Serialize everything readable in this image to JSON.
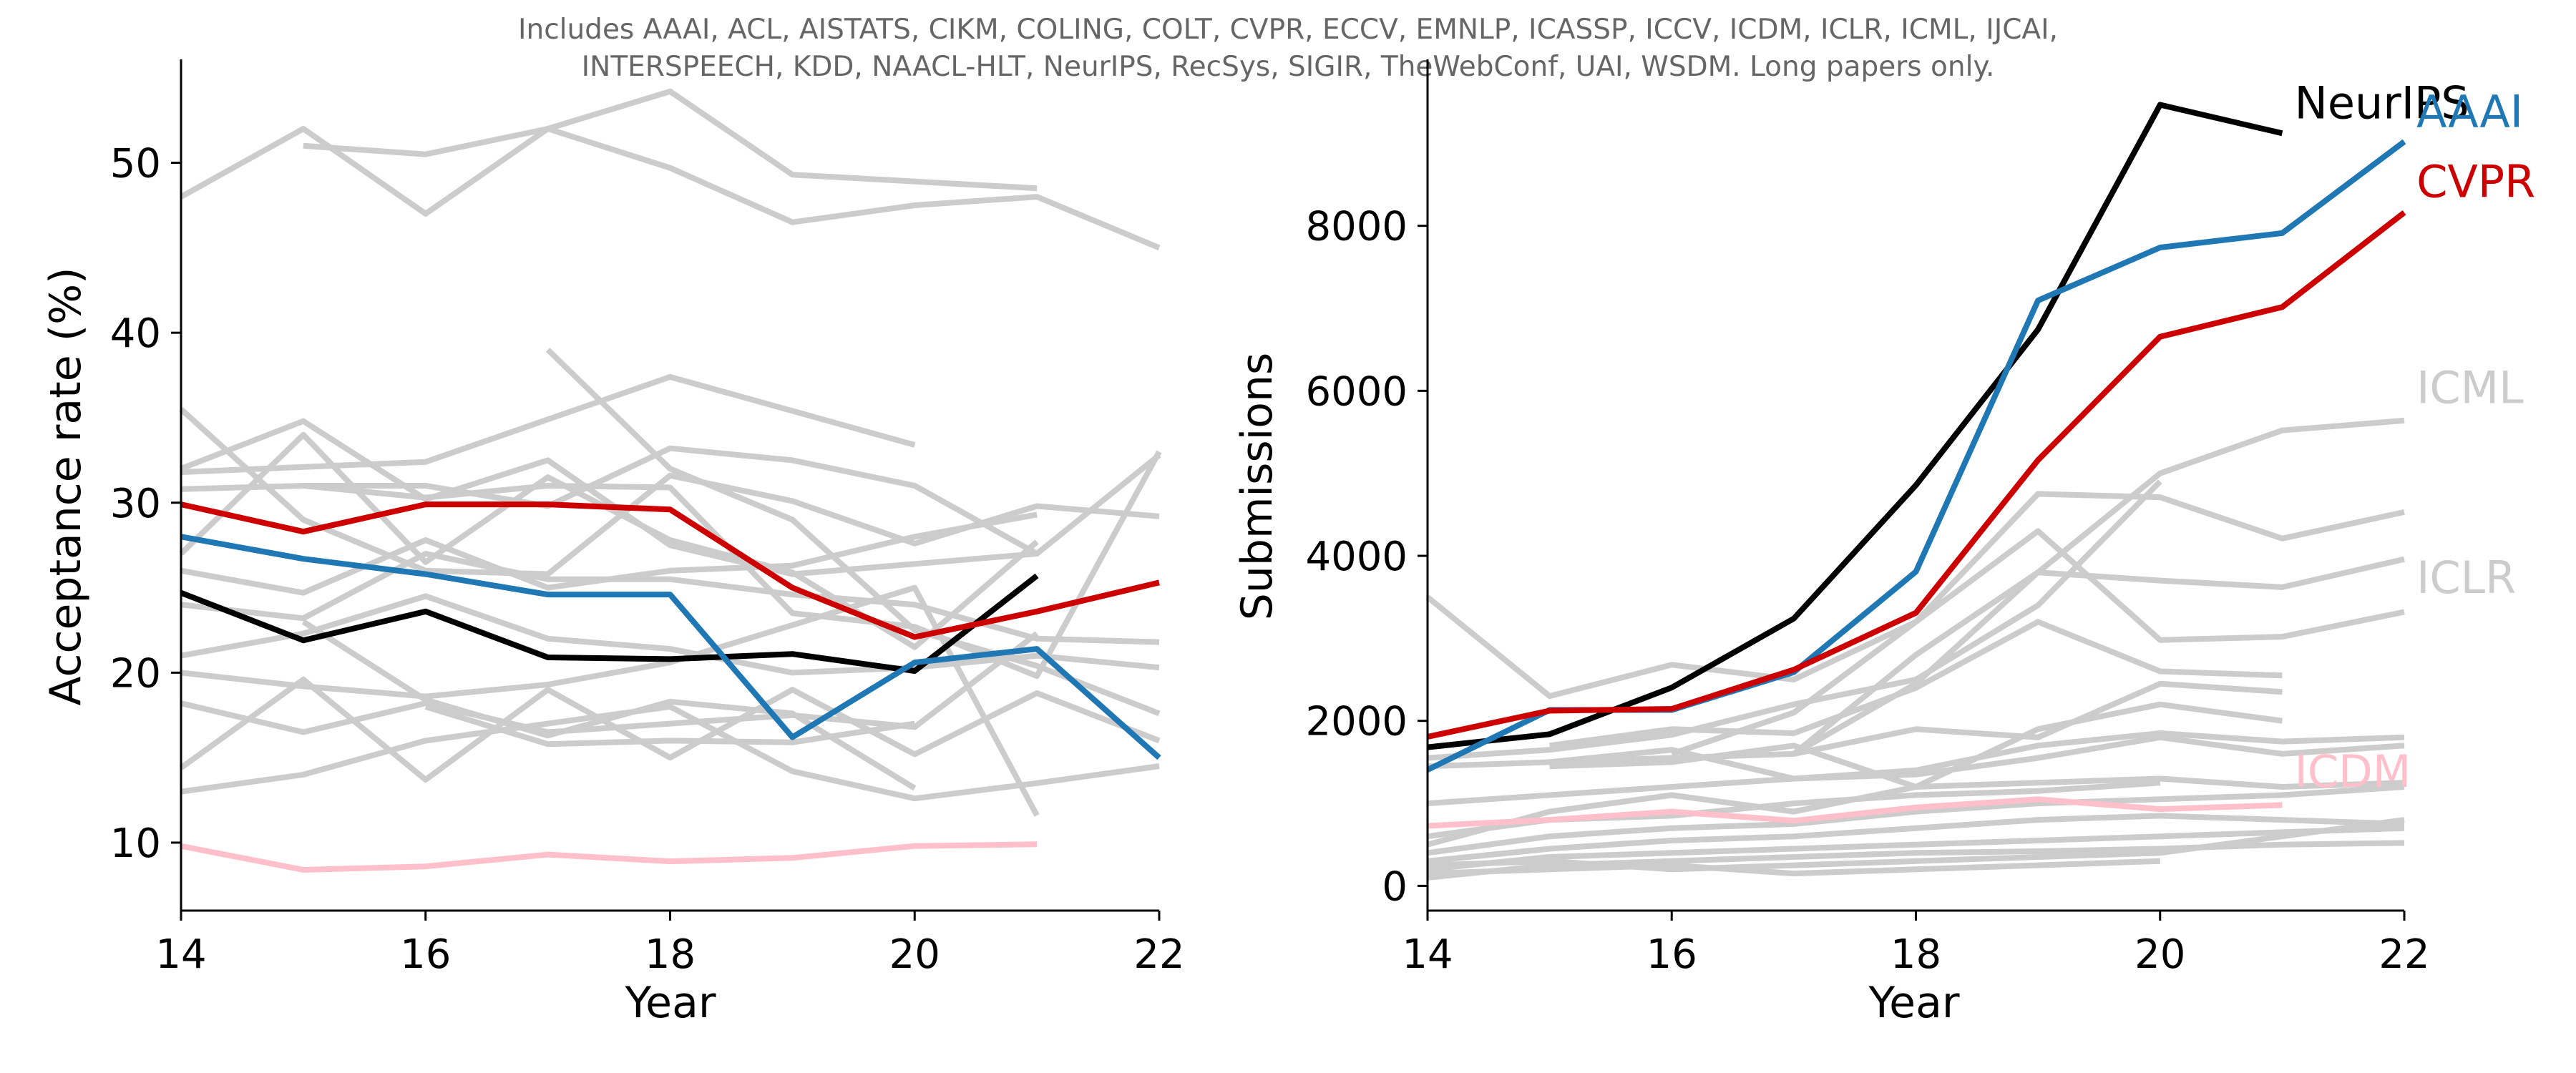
{
  "figure": {
    "subtitle_lines": [
      "Includes AAAI, ACL, AISTATS, CIKM, COLING, COLT, CVPR, ECCV, EMNLP, ICASSP, ICCV, ICDM, ICLR, ICML, IJCAI,",
      "INTERSPEECH, KDD, NAACL-HLT, NeurIPS, RecSys, SIGIR, TheWebConf, UAI, WSDM. Long papers only."
    ]
  },
  "chart_data": [
    {
      "id": "acceptance",
      "type": "line",
      "title": "",
      "xlabel": "Year",
      "ylabel": "Acceptance rate (%)",
      "xlim": [
        14,
        22
      ],
      "ylim": [
        6,
        56
      ],
      "xticks": [
        14,
        16,
        18,
        20,
        22
      ],
      "yticks": [
        10,
        20,
        30,
        40,
        50
      ],
      "grid": false,
      "highlighted": [
        {
          "name": "NeurIPS",
          "color": "#000000",
          "x": [
            14,
            15,
            16,
            17,
            18,
            19,
            20,
            21
          ],
          "y": [
            24.7,
            21.9,
            23.6,
            20.9,
            20.8,
            21.1,
            20.1,
            25.7
          ]
        },
        {
          "name": "AAAI",
          "color": "#1f77b4",
          "x": [
            14,
            15,
            16,
            17,
            18,
            19,
            20,
            21,
            22
          ],
          "y": [
            28.0,
            26.7,
            25.8,
            24.6,
            24.6,
            16.2,
            20.6,
            21.4,
            15.0
          ]
        },
        {
          "name": "CVPR",
          "color": "#cc0000",
          "x": [
            14,
            15,
            16,
            17,
            18,
            19,
            20,
            21,
            22
          ],
          "y": [
            29.9,
            28.3,
            29.9,
            29.9,
            29.6,
            25.0,
            22.1,
            23.6,
            25.3
          ]
        },
        {
          "name": "ICDM",
          "color": "#ffc0cb",
          "x": [
            14,
            15,
            16,
            17,
            18,
            19,
            20,
            21
          ],
          "y": [
            9.8,
            8.4,
            8.6,
            9.3,
            8.9,
            9.1,
            9.8,
            9.9
          ]
        }
      ],
      "background_color": "#cccccc",
      "background": [
        {
          "x": [
            14,
            15,
            16,
            17,
            18,
            19,
            20,
            21,
            22
          ],
          "y": [
            48.0,
            52.0,
            47.0,
            52.0,
            49.7,
            46.5,
            47.5,
            48.0,
            45.0
          ]
        },
        {
          "x": [
            15,
            16,
            17,
            18,
            19,
            21
          ],
          "y": [
            51.0,
            50.5,
            52.0,
            54.2,
            49.3,
            48.5
          ]
        },
        {
          "x": [
            17,
            18,
            19,
            20,
            21,
            22
          ],
          "y": [
            39.0,
            32.0,
            29.0,
            22.5,
            20.4,
            17.6
          ]
        },
        {
          "x": [
            14,
            16,
            18,
            20
          ],
          "y": [
            31.8,
            32.4,
            37.4,
            33.4
          ]
        },
        {
          "x": [
            14,
            15,
            16,
            17,
            18,
            19,
            20,
            21,
            22
          ],
          "y": [
            35.5,
            29.0,
            26.0,
            25.8,
            31.6,
            30.1,
            27.6,
            29.8,
            29.2
          ]
        },
        {
          "x": [
            14,
            15,
            16,
            17,
            18,
            19,
            20,
            21
          ],
          "y": [
            32.0,
            34.8,
            30.2,
            32.5,
            27.5,
            25.8,
            26.4,
            27.0
          ]
        },
        {
          "x": [
            14,
            15,
            16,
            17,
            18,
            19,
            20,
            21,
            22
          ],
          "y": [
            30.8,
            31.0,
            31.0,
            29.8,
            33.2,
            32.5,
            31.0,
            27.0,
            32.8
          ]
        },
        {
          "x": [
            15,
            16,
            17,
            18,
            19,
            20,
            21,
            22
          ],
          "y": [
            31.0,
            30.3,
            31.0,
            30.9,
            23.5,
            22.7,
            19.8,
            33.0
          ]
        },
        {
          "x": [
            14,
            15,
            16,
            17,
            18,
            19,
            20,
            21
          ],
          "y": [
            27.0,
            34.0,
            26.5,
            31.5,
            27.8,
            25.9,
            21.5,
            27.7
          ]
        },
        {
          "x": [
            14,
            15,
            16,
            17,
            18,
            19,
            20,
            21
          ],
          "y": [
            26.0,
            24.7,
            27.8,
            25.0,
            26.0,
            26.3,
            28.0,
            29.3
          ]
        },
        {
          "x": [
            14,
            15,
            16,
            17,
            18,
            19,
            20,
            21,
            22
          ],
          "y": [
            24.0,
            23.2,
            27.0,
            25.5,
            25.5,
            24.6,
            24.0,
            22.0,
            21.8
          ]
        },
        {
          "x": [
            14,
            15,
            16,
            17,
            18,
            19,
            20,
            21,
            22
          ],
          "y": [
            21.0,
            22.3,
            24.5,
            22.0,
            21.4,
            20.0,
            20.3,
            21.0,
            20.3
          ]
        },
        {
          "x": [
            14,
            15,
            16,
            17,
            18,
            19,
            20,
            21
          ],
          "y": [
            20.0,
            19.2,
            18.6,
            19.3,
            20.6,
            22.8,
            25.0,
            11.6
          ]
        },
        {
          "x": [
            15,
            16,
            17,
            18,
            19,
            20
          ],
          "y": [
            23.0,
            18.4,
            16.3,
            18.3,
            17.6,
            13.2
          ]
        },
        {
          "x": [
            14,
            15,
            16,
            17,
            18,
            19,
            20,
            21
          ],
          "y": [
            18.2,
            16.5,
            18.2,
            16.5,
            17.0,
            17.5,
            16.8,
            22.3
          ]
        },
        {
          "x": [
            14,
            15,
            16,
            17,
            18,
            19,
            20,
            21,
            22
          ],
          "y": [
            14.4,
            19.6,
            13.7,
            19.0,
            15.0,
            19.0,
            15.2,
            18.8,
            16.0
          ]
        },
        {
          "x": [
            14,
            15,
            16,
            17,
            18,
            19,
            20,
            21,
            22
          ],
          "y": [
            13.0,
            14.0,
            16.0,
            17.0,
            18.0,
            14.2,
            12.6,
            13.5,
            14.5
          ]
        },
        {
          "x": [
            16,
            17,
            18,
            19,
            20
          ],
          "y": [
            18.0,
            15.8,
            16.0,
            15.9,
            17.0
          ]
        }
      ]
    },
    {
      "id": "submissions",
      "type": "line",
      "title": "",
      "xlabel": "Year",
      "ylabel": "Submissions",
      "xlim": [
        14,
        22
      ],
      "ylim": [
        -300,
        10000
      ],
      "xticks": [
        14,
        16,
        18,
        20,
        22
      ],
      "yticks": [
        0,
        2000,
        4000,
        6000,
        8000
      ],
      "grid": false,
      "highlighted": [
        {
          "name": "NeurIPS",
          "color": "#000000",
          "x": [
            14,
            15,
            16,
            17,
            18,
            19,
            20,
            21
          ],
          "y": [
            1680,
            1838,
            2403,
            3240,
            4856,
            6743,
            9467,
            9122
          ]
        },
        {
          "name": "AAAI",
          "color": "#1f77b4",
          "x": [
            14,
            15,
            16,
            17,
            18,
            19,
            20,
            21,
            22
          ],
          "y": [
            1406,
            2132,
            2132,
            2590,
            3808,
            7095,
            7737,
            7911,
            9020
          ]
        },
        {
          "name": "CVPR",
          "color": "#cc0000",
          "x": [
            14,
            15,
            16,
            17,
            18,
            19,
            20,
            21,
            22
          ],
          "y": [
            1807,
            2123,
            2145,
            2620,
            3309,
            5160,
            6656,
            7015,
            8161
          ]
        },
        {
          "name": "ICDM",
          "color": "#ffc0cb",
          "x": [
            14,
            15,
            16,
            17,
            18,
            19,
            20,
            21
          ],
          "y": [
            727,
            800,
            900,
            790,
            950,
            1050,
            930,
            980
          ]
        }
      ],
      "background_color": "#cccccc",
      "background": [
        {
          "x": [
            14,
            15,
            16,
            17,
            18,
            19,
            20,
            21,
            22
          ],
          "y": [
            3500,
            2300,
            2680,
            2500,
            3200,
            4750,
            4710,
            4210,
            4530
          ]
        },
        {
          "x": [
            17,
            18,
            19,
            20,
            21,
            22
          ],
          "y": [
            1600,
            2450,
            3800,
            5000,
            5520,
            5640
          ]
        },
        {
          "x": [
            17,
            18,
            19,
            20,
            21,
            22
          ],
          "y": [
            1600,
            2800,
            3800,
            3700,
            3620,
            3960
          ]
        },
        {
          "x": [
            16,
            17,
            18,
            19,
            20,
            21,
            22
          ],
          "y": [
            1600,
            2100,
            3200,
            4300,
            2980,
            3020,
            3320
          ]
        },
        {
          "x": [
            14,
            15,
            16,
            17,
            18,
            19,
            20
          ],
          "y": [
            1550,
            1650,
            1830,
            2200,
            2500,
            3400,
            4900
          ]
        },
        {
          "x": [
            15,
            16,
            17,
            18,
            19,
            20,
            21
          ],
          "y": [
            1700,
            1900,
            1850,
            2400,
            3200,
            2600,
            2550
          ]
        },
        {
          "x": [
            15,
            16,
            17,
            18,
            19,
            20,
            21
          ],
          "y": [
            1500,
            1550,
            1600,
            1900,
            1800,
            2450,
            2350
          ]
        },
        {
          "x": [
            15,
            16,
            17,
            18,
            19,
            20,
            21
          ],
          "y": [
            1450,
            1500,
            1700,
            1200,
            1900,
            2200,
            2000
          ]
        },
        {
          "x": [
            14,
            15,
            16,
            17,
            18,
            19,
            20,
            21,
            22
          ],
          "y": [
            1450,
            1500,
            1650,
            1300,
            1400,
            1700,
            1850,
            1750,
            1800
          ]
        },
        {
          "x": [
            14,
            15,
            16,
            17,
            18,
            19,
            20,
            21,
            22
          ],
          "y": [
            1000,
            1100,
            1200,
            1300,
            1350,
            1550,
            1800,
            1600,
            1700
          ]
        },
        {
          "x": [
            14,
            15,
            16,
            17,
            18,
            19,
            20,
            21,
            22
          ],
          "y": [
            500,
            900,
            1100,
            900,
            1200,
            1250,
            1300,
            1200,
            1250
          ]
        },
        {
          "x": [
            14,
            15,
            16,
            17,
            18,
            19,
            20
          ],
          "y": [
            600,
            800,
            850,
            1000,
            1100,
            1150,
            1250
          ]
        },
        {
          "x": [
            14,
            15,
            16,
            17,
            18,
            19,
            20,
            21,
            22
          ],
          "y": [
            400,
            600,
            700,
            750,
            900,
            1000,
            1050,
            1100,
            1200
          ]
        },
        {
          "x": [
            14,
            15,
            16,
            17,
            18,
            19,
            20,
            21,
            22
          ],
          "y": [
            300,
            450,
            550,
            600,
            700,
            800,
            850,
            800,
            750
          ]
        },
        {
          "x": [
            14,
            15,
            16,
            17,
            18,
            19,
            20,
            21,
            22
          ],
          "y": [
            200,
            350,
            400,
            450,
            500,
            550,
            600,
            650,
            700
          ]
        },
        {
          "x": [
            14,
            15,
            16,
            17,
            18,
            19,
            20,
            21,
            22
          ],
          "y": [
            100,
            250,
            300,
            350,
            400,
            420,
            450,
            500,
            520
          ]
        },
        {
          "x": [
            14,
            15,
            16,
            17,
            18,
            19,
            20
          ],
          "y": [
            150,
            200,
            250,
            150,
            200,
            250,
            300
          ]
        },
        {
          "x": [
            14,
            15,
            16,
            17,
            18,
            19,
            20,
            21,
            22
          ],
          "y": [
            250,
            300,
            200,
            250,
            300,
            350,
            400,
            600,
            800
          ]
        }
      ],
      "end_labels": [
        {
          "text": "NeurIPS",
          "color": "#000000",
          "x": 21.1,
          "y": 9300
        },
        {
          "text": "AAAI",
          "color": "#1f77b4",
          "x": 22.1,
          "y": 9200
        },
        {
          "text": "CVPR",
          "color": "#cc0000",
          "x": 22.1,
          "y": 8350
        },
        {
          "text": "ICML",
          "color": "#cccccc",
          "x": 22.1,
          "y": 5850
        },
        {
          "text": "ICLR",
          "color": "#cccccc",
          "x": 22.1,
          "y": 3550
        },
        {
          "text": "ICDM",
          "color": "#ffc0cb",
          "x": 21.1,
          "y": 1200
        }
      ]
    }
  ]
}
